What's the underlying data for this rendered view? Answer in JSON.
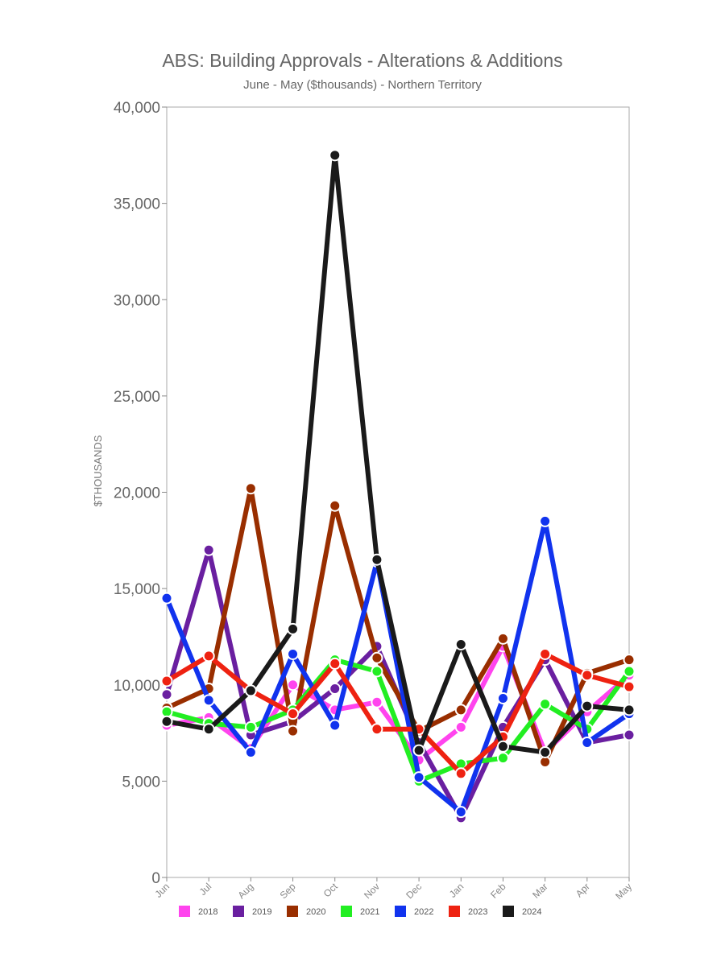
{
  "chart_data": {
    "type": "line",
    "title": "ABS: Building Approvals - Alterations & Additions",
    "subtitle": "June - May ($thousands) - Northern Territory",
    "ylabel": "$THOUSANDS",
    "xlabel": "",
    "ylim": [
      0,
      40000
    ],
    "yticks": [
      "0",
      "5,000",
      "10,000",
      "15,000",
      "20,000",
      "25,000",
      "30,000",
      "35,000",
      "40,000"
    ],
    "ytick_values": [
      0,
      5000,
      10000,
      15000,
      20000,
      25000,
      30000,
      35000,
      40000
    ],
    "categories": [
      "Jun",
      "Jul",
      "Aug",
      "Sep",
      "Oct",
      "Nov",
      "Dec",
      "Jan",
      "Feb",
      "Mar",
      "Apr",
      "May"
    ],
    "grid": false,
    "legend_position": "bottom",
    "series": [
      {
        "name": "2018",
        "color": "#ff44ee",
        "values": [
          7900,
          8300,
          6700,
          10000,
          8700,
          9100,
          6100,
          7800,
          12000,
          6500,
          8600,
          10500
        ]
      },
      {
        "name": "2019",
        "color": "#6a1fa0",
        "values": [
          9500,
          17000,
          7400,
          8100,
          9800,
          12000,
          7000,
          3100,
          7800,
          11300,
          7000,
          7400
        ]
      },
      {
        "name": "2020",
        "color": "#992e00",
        "values": [
          8800,
          9800,
          20200,
          7600,
          19300,
          11400,
          7600,
          8700,
          12400,
          6000,
          10600,
          11300
        ]
      },
      {
        "name": "2021",
        "color": "#22ee22",
        "values": [
          8600,
          8000,
          7800,
          8700,
          11300,
          10700,
          5000,
          5900,
          6200,
          9000,
          7700,
          10700
        ]
      },
      {
        "name": "2022",
        "color": "#1133ee",
        "values": [
          14500,
          9200,
          6500,
          11600,
          7900,
          16400,
          5200,
          3400,
          9300,
          18500,
          7000,
          8500
        ]
      },
      {
        "name": "2023",
        "color": "#ee2211",
        "values": [
          10200,
          11500,
          9700,
          8500,
          11100,
          7700,
          7700,
          5400,
          7300,
          11600,
          10500,
          9900
        ]
      },
      {
        "name": "2024",
        "color": "#1a1a1a",
        "values": [
          8100,
          7700,
          9700,
          12900,
          37500,
          16500,
          6600,
          12100,
          6800,
          6500,
          8900,
          8700
        ]
      }
    ]
  }
}
